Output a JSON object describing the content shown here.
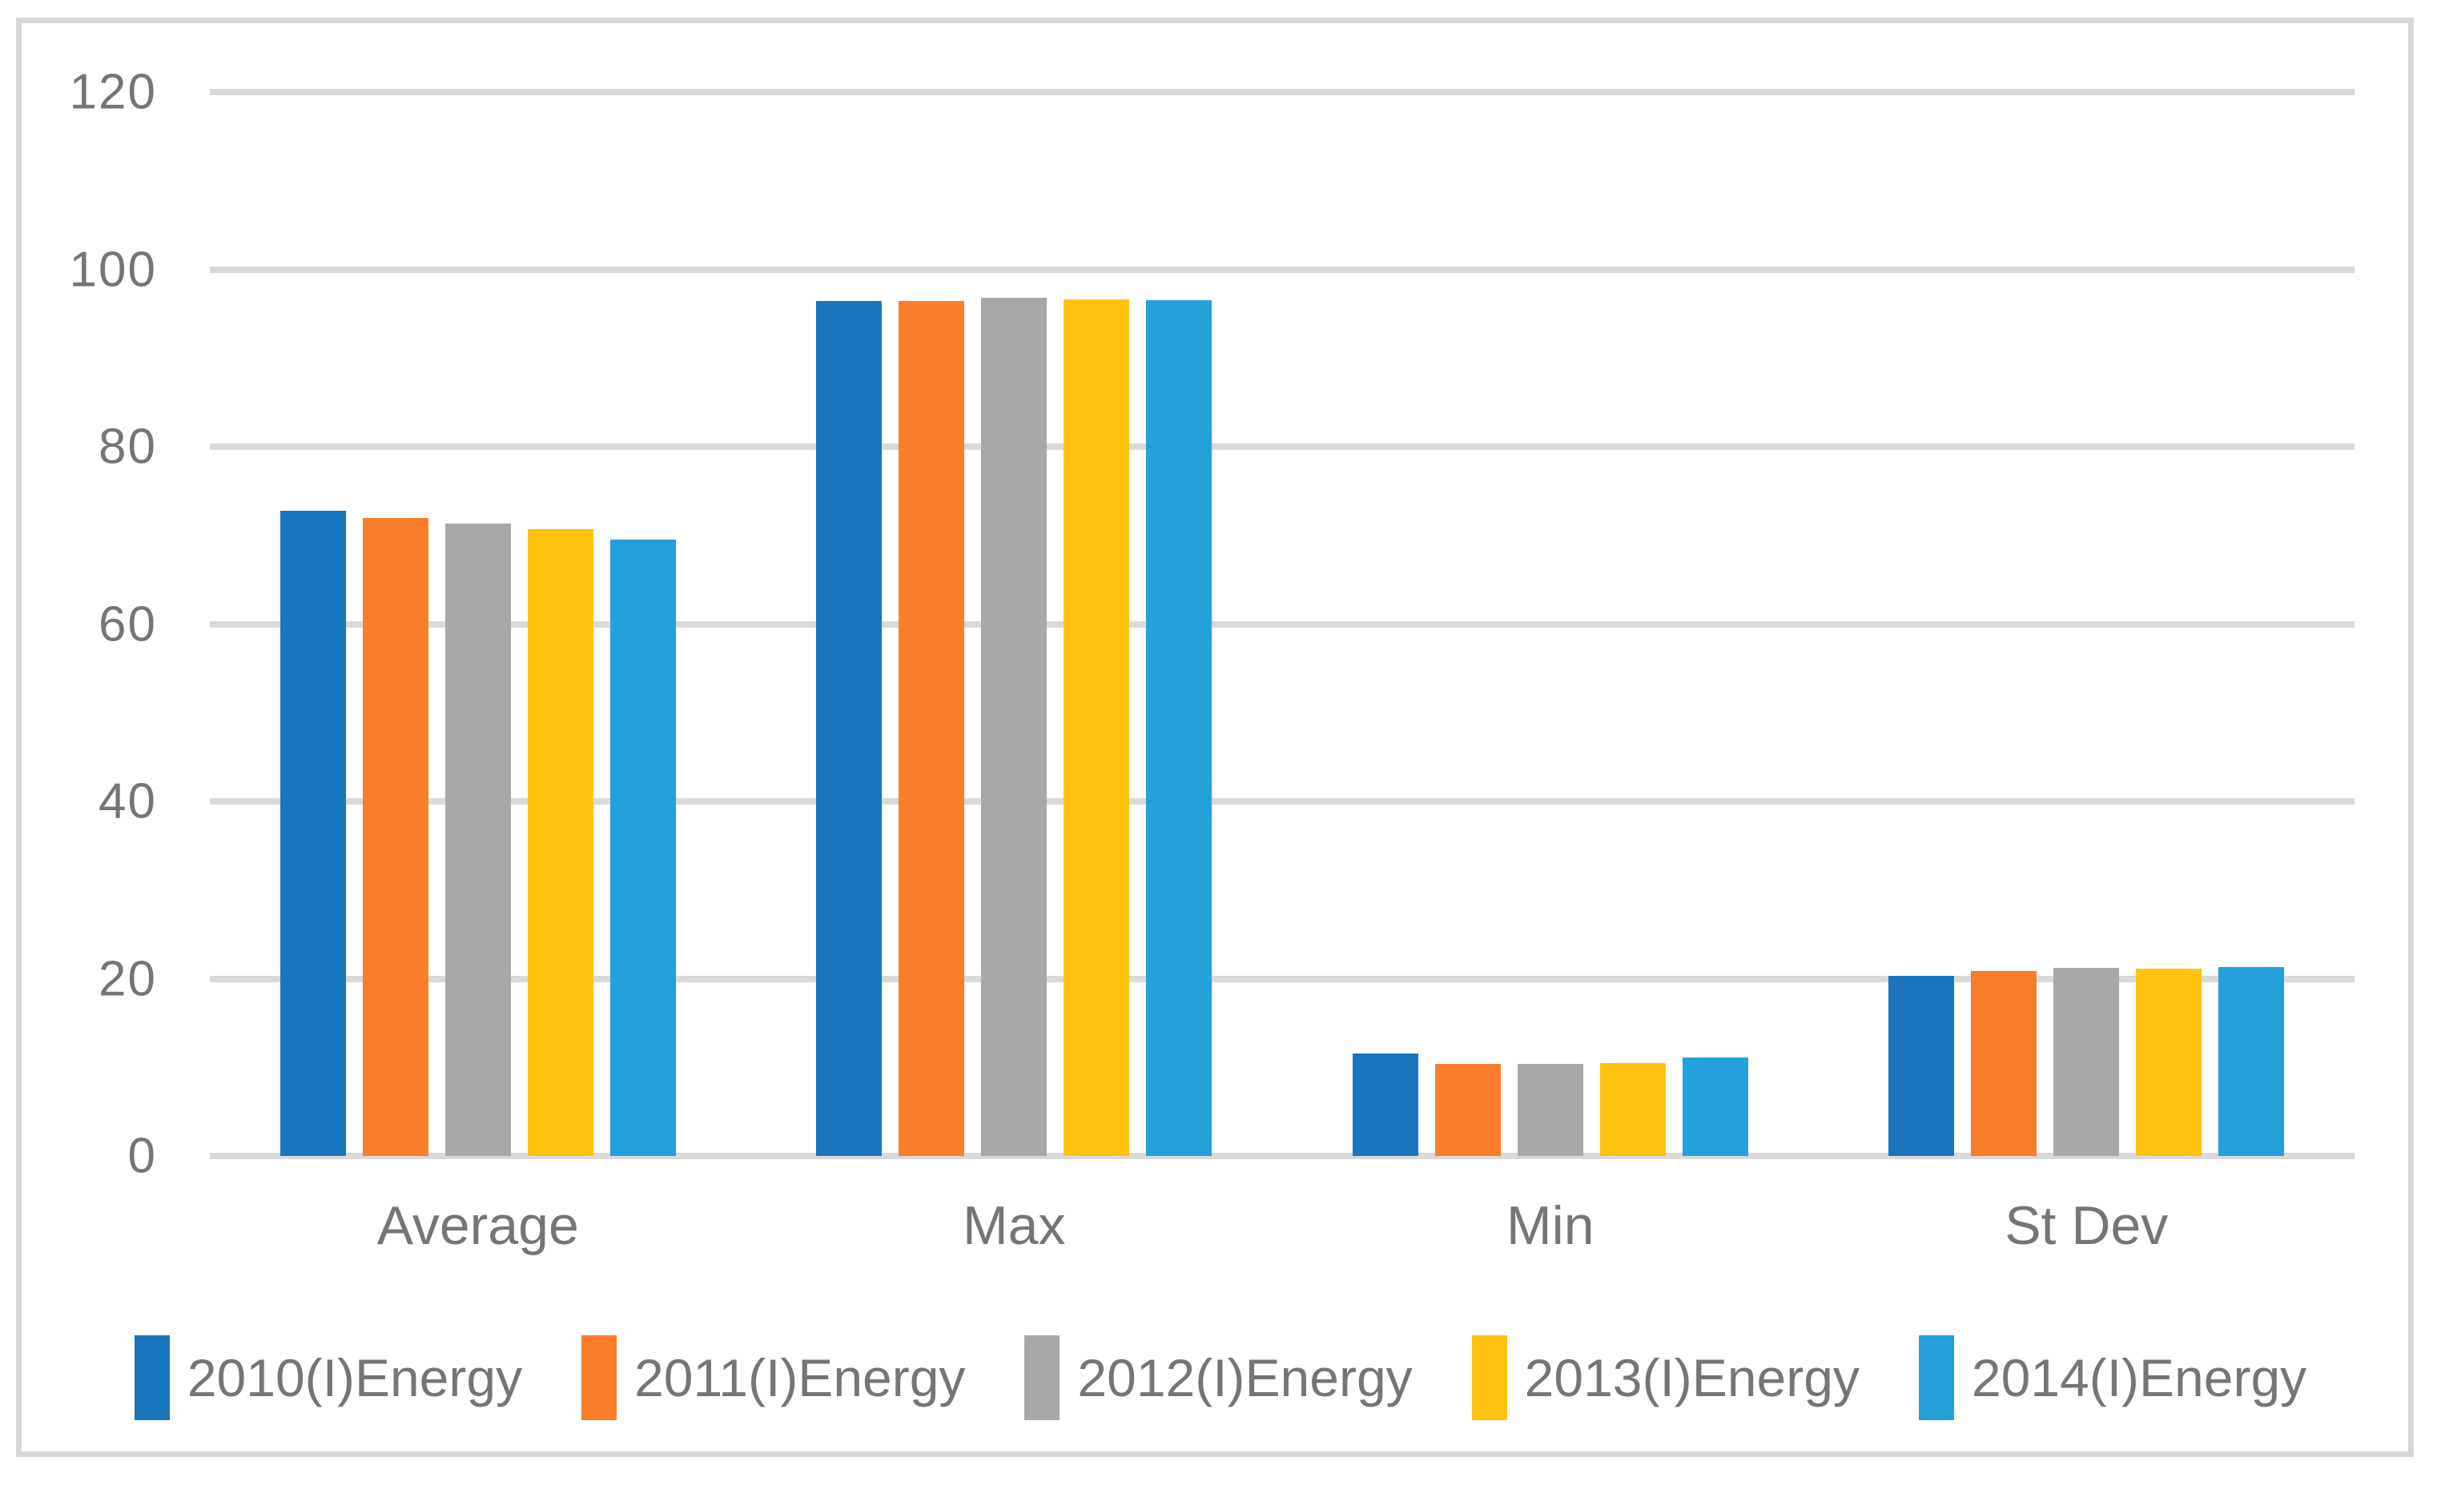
{
  "chart_data": {
    "type": "bar",
    "title": "",
    "xlabel": "",
    "ylabel": "",
    "categories": [
      "Average",
      "Max",
      "Min",
      "St Dev"
    ],
    "series": [
      {
        "name": "2010(I)Energy",
        "color": "#1b75bc",
        "values": [
          72.8,
          96.4,
          11.6,
          20.3
        ]
      },
      {
        "name": "2011(I)Energy",
        "color": "#f97d2b",
        "values": [
          72.0,
          96.4,
          10.4,
          20.9
        ]
      },
      {
        "name": "2012(I)Energy",
        "color": "#a8a8a8",
        "values": [
          71.3,
          96.8,
          10.4,
          21.2
        ]
      },
      {
        "name": "2013(I)Energy",
        "color": "#ffc20e",
        "values": [
          70.7,
          96.6,
          10.5,
          21.1
        ]
      },
      {
        "name": "2014(I)Energy",
        "color": "#24a0db",
        "values": [
          69.5,
          96.5,
          11.1,
          21.3
        ]
      }
    ],
    "yticks": [
      0,
      20,
      40,
      60,
      80,
      100,
      120
    ],
    "ylim": [
      0,
      120
    ],
    "grid": true,
    "legend_position": "bottom",
    "styles": {
      "gridline_color": "#d9d9d9",
      "frame_border_color": "#d6d6d6",
      "text_color": "#757575",
      "background": "#ffffff"
    }
  }
}
